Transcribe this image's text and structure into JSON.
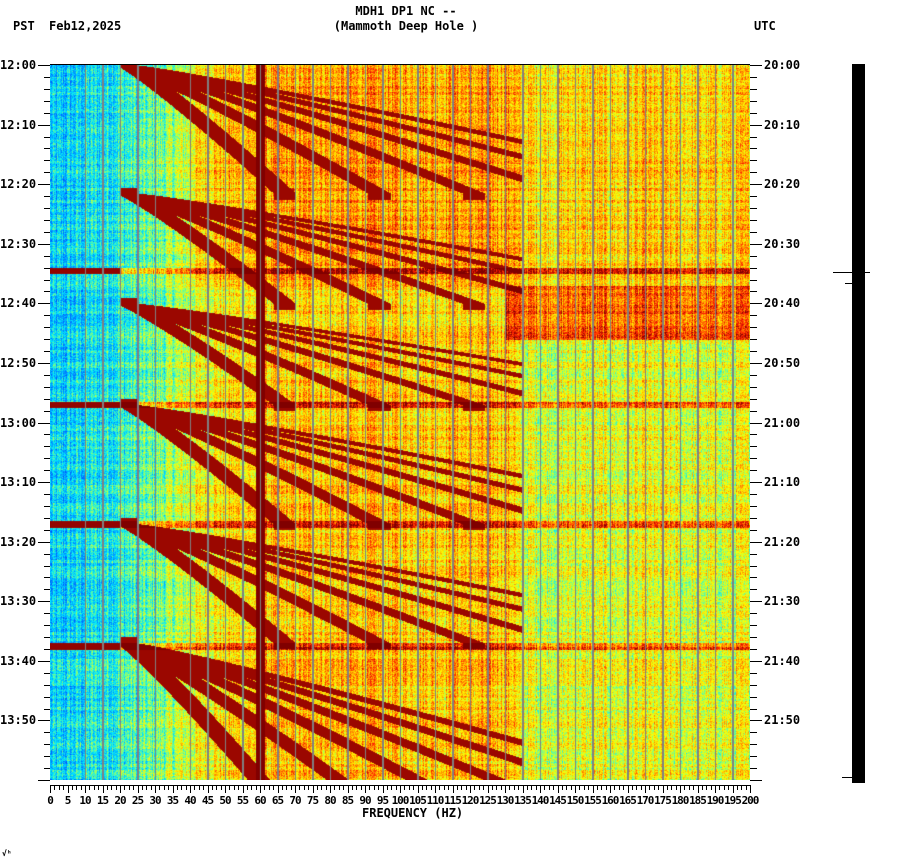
{
  "header": {
    "station_line": "MDH1 DP1 NC --",
    "station_name": "(Mammoth Deep Hole )",
    "timezone_left": "PST",
    "date": "Feb12,2025",
    "timezone_right": "UTC"
  },
  "footer": {
    "corner_mark": "√ʰ"
  },
  "colors": {
    "colormap": [
      "#0040ff",
      "#0090ff",
      "#00e8ff",
      "#80ff80",
      "#ffff00",
      "#ffa000",
      "#ff2000",
      "#800000"
    ],
    "grid_line": "#808080",
    "axis": "#000000",
    "trace": "#000000"
  },
  "chart_data": {
    "type": "heatmap",
    "title": "MDH1 DP1 NC -- (Mammoth Deep Hole )",
    "subtitle": "Feb12,2025",
    "xlabel": "FREQUENCY (HZ)",
    "ylabel_left": "PST",
    "ylabel_right": "UTC",
    "xlim": [
      0,
      200
    ],
    "x_ticks": [
      "0",
      "5",
      "10",
      "15",
      "20",
      "25",
      "30",
      "35",
      "40",
      "45",
      "50",
      "55",
      "60",
      "65",
      "70",
      "75",
      "80",
      "85",
      "90",
      "95",
      "100",
      "105",
      "110",
      "115",
      "120",
      "125",
      "130",
      "135",
      "140",
      "145",
      "150",
      "155",
      "160",
      "165",
      "170",
      "175",
      "180",
      "185",
      "190",
      "195",
      "200"
    ],
    "y_ticks_left": [
      "12:00",
      "12:10",
      "12:20",
      "12:30",
      "12:40",
      "12:50",
      "13:00",
      "13:10",
      "13:20",
      "13:30",
      "13:40",
      "13:50"
    ],
    "y_ticks_right": [
      "20:00",
      "20:10",
      "20:20",
      "20:30",
      "20:40",
      "20:50",
      "21:00",
      "21:10",
      "21:20",
      "21:30",
      "21:40",
      "21:50"
    ],
    "time_range_minutes": 120,
    "grid": {
      "vertical_every_hz": 5
    },
    "features": {
      "persistent_line_hz": 60,
      "broadband_bursts_minutes": [
        34.5,
        57.0,
        77.0,
        97.5
      ],
      "chirp_cycle_start_minutes": [
        0,
        21.5,
        40.0,
        57.0,
        77.0,
        97.0
      ],
      "elevated_band": {
        "start_min": 37.0,
        "end_min": 46.0,
        "from_hz": 130,
        "to_hz": 200
      },
      "quiet_band_below_hz": 25,
      "energy_rolloff_hz": 133
    }
  }
}
